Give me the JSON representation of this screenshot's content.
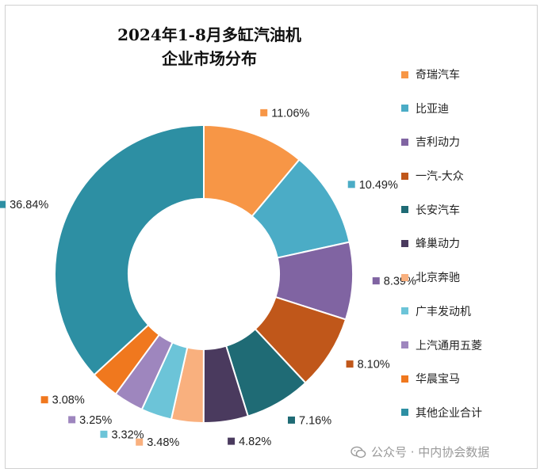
{
  "chart_data": {
    "type": "pie",
    "title": [
      "2024年1-8月多缸汽油机",
      "企业市场分布"
    ],
    "legend_position": "right",
    "categories": [
      "奇瑞汽车",
      "比亚迪",
      "吉利动力",
      "一汽-大众",
      "长安汽车",
      "蜂巢动力",
      "北京奔驰",
      "广丰发动机",
      "上汽通用五菱",
      "华晨宝马",
      "其他企业合计"
    ],
    "values": [
      11.06,
      10.49,
      8.39,
      8.1,
      7.16,
      4.82,
      3.48,
      3.32,
      3.25,
      3.08,
      36.84
    ],
    "labels": [
      "11.06%",
      "10.49%",
      "8.39%",
      "8.10%",
      "7.16%",
      "4.82%",
      "3.48%",
      "3.32%",
      "3.25%",
      "3.08%",
      "36.84%"
    ],
    "colors": [
      "#F79646",
      "#4BACC6",
      "#8064A2",
      "#C0571A",
      "#1F6B75",
      "#4A3A5E",
      "#F9B07E",
      "#6CC4D8",
      "#9E86BE",
      "#F0781E",
      "#2D8FA3"
    ]
  },
  "watermark": "公众号 · 中内协会数据"
}
